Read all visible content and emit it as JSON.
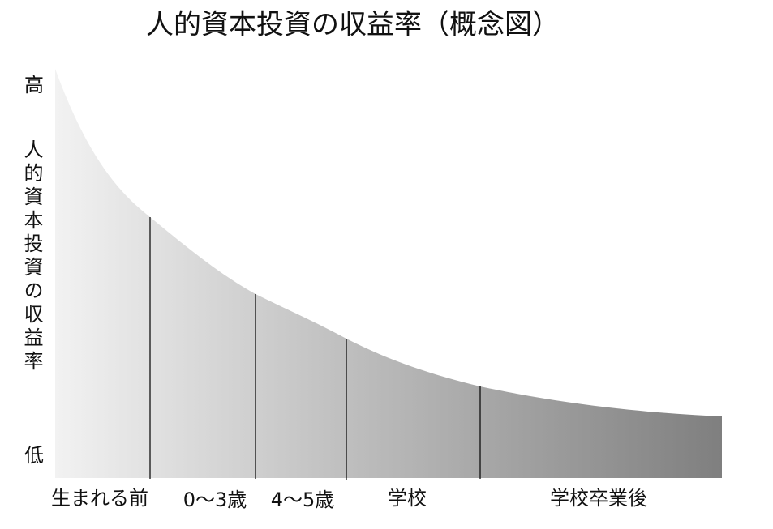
{
  "title": "人的資本投資の収益率（概念図）",
  "y_axis": {
    "high": "高",
    "low": "低",
    "label": "人的資本投資の収益率"
  },
  "stages": [
    "生まれる前",
    "0〜3歳",
    "4〜5歳",
    "学校",
    "学校卒業後"
  ]
}
